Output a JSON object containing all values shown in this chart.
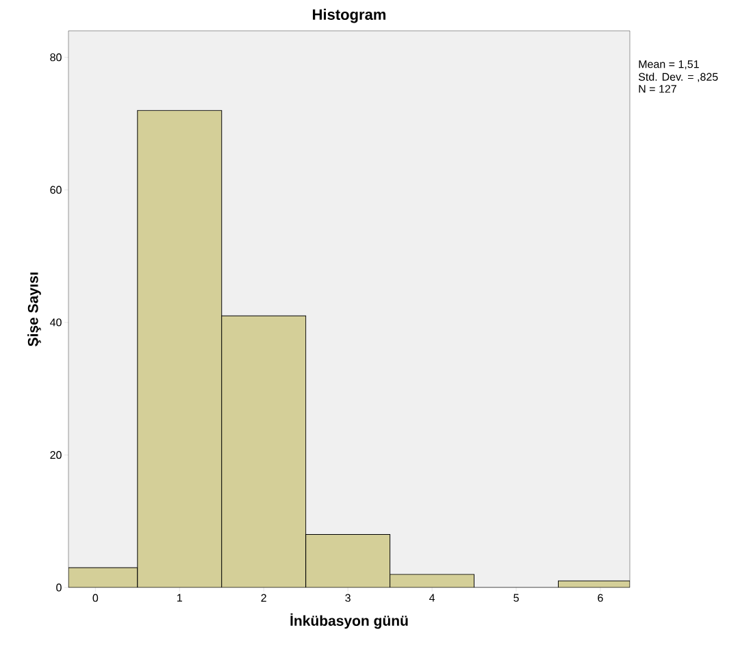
{
  "chart_data": {
    "type": "histogram",
    "title": "Histogram",
    "xlabel": "İnkübasyon günü",
    "ylabel": "Şişe Sayısı",
    "bins": [
      -0.32,
      0.5,
      1.5,
      2.5,
      3.5,
      4.5,
      5.5,
      6.35
    ],
    "values": [
      3,
      72,
      41,
      8,
      2,
      0,
      1
    ],
    "color": "#d4cf98",
    "xlim": [
      -0.32,
      6.35
    ],
    "xticks": [
      0,
      1,
      2,
      3,
      4,
      5,
      6
    ],
    "ylim": [
      0,
      84
    ],
    "yticks": [
      0,
      20,
      40,
      60,
      80
    ],
    "annotations": [
      "Mean = 1,51",
      "Std. Dev. = ,825",
      "N = 127"
    ]
  }
}
